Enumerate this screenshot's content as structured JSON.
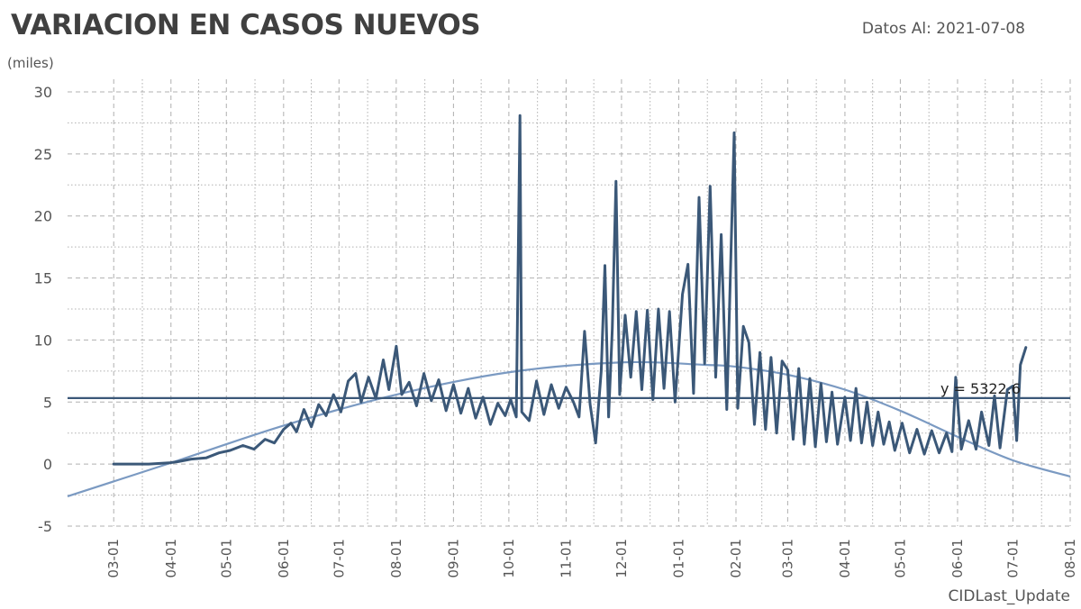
{
  "header": {
    "title": "VARIACION EN CASOS NUEVOS",
    "as_of_label": "Datos Al: 2021-07-08"
  },
  "chart_data": {
    "type": "line",
    "title": "VARIACION EN CASOS NUEVOS",
    "ylabel": "(miles)",
    "xlabel": "CIDLast_Update",
    "ylim": [
      -5,
      30
    ],
    "xlim": [
      "2020-02-05",
      "2021-08-01"
    ],
    "y_ticks": [
      30,
      25,
      20,
      15,
      10,
      5,
      0,
      -5
    ],
    "x_ticks": [
      "2020-03-01",
      "2020-04-01",
      "2020-05-01",
      "2020-06-01",
      "2020-07-01",
      "2020-08-01",
      "2020-09-01",
      "2020-10-01",
      "2020-11-01",
      "2020-12-01",
      "2021-01-01",
      "2021-02-01",
      "2021-03-01",
      "2021-04-01",
      "2021-05-01",
      "2021-06-01",
      "2021-07-01",
      "2021-08-01"
    ],
    "x_tick_labels": [
      "03-01",
      "04-01",
      "05-01",
      "06-01",
      "07-01",
      "08-01",
      "09-01",
      "10-01",
      "11-01",
      "12-01",
      "01-01",
      "02-01",
      "03-01",
      "04-01",
      "05-01",
      "06-01",
      "07-01",
      "08-01"
    ],
    "grid": true,
    "colors": {
      "series": "#3b5878",
      "trend": "#7b9ac2",
      "reference": "#3b5878",
      "grid": "#b0b0b0"
    },
    "reference_line": {
      "value": 5.3226,
      "label": "y = 5322.6"
    },
    "trend": {
      "kind": "polynomial",
      "points": [
        [
          "2020-02-05",
          -2.6
        ],
        [
          "2020-04-01",
          0.1
        ],
        [
          "2020-06-01",
          3.1
        ],
        [
          "2020-08-01",
          5.6
        ],
        [
          "2020-10-01",
          7.4
        ],
        [
          "2020-12-01",
          8.2
        ],
        [
          "2021-01-15",
          8.0
        ],
        [
          "2021-02-01",
          7.85
        ],
        [
          "2021-03-01",
          7.2
        ],
        [
          "2021-04-01",
          6.0
        ],
        [
          "2021-05-01",
          4.3
        ],
        [
          "2021-06-01",
          2.2
        ],
        [
          "2021-07-01",
          0.3
        ],
        [
          "2021-08-01",
          -1.0
        ]
      ]
    },
    "series": [
      {
        "values": [
          [
            "2020-03-01",
            0
          ],
          [
            "2020-03-10",
            0
          ],
          [
            "2020-03-20",
            0
          ],
          [
            "2020-03-31",
            0.1
          ],
          [
            "2020-04-05",
            0.2
          ],
          [
            "2020-04-12",
            0.4
          ],
          [
            "2020-04-20",
            0.5
          ],
          [
            "2020-04-27",
            0.9
          ],
          [
            "2020-05-03",
            1.1
          ],
          [
            "2020-05-10",
            1.5
          ],
          [
            "2020-05-16",
            1.2
          ],
          [
            "2020-05-22",
            2.0
          ],
          [
            "2020-05-27",
            1.7
          ],
          [
            "2020-06-01",
            2.8
          ],
          [
            "2020-06-05",
            3.3
          ],
          [
            "2020-06-08",
            2.6
          ],
          [
            "2020-06-12",
            4.4
          ],
          [
            "2020-06-16",
            3.0
          ],
          [
            "2020-06-20",
            4.8
          ],
          [
            "2020-06-24",
            3.9
          ],
          [
            "2020-06-28",
            5.6
          ],
          [
            "2020-07-02",
            4.2
          ],
          [
            "2020-07-06",
            6.7
          ],
          [
            "2020-07-10",
            7.3
          ],
          [
            "2020-07-13",
            5.0
          ],
          [
            "2020-07-17",
            7.0
          ],
          [
            "2020-07-21",
            5.3
          ],
          [
            "2020-07-25",
            8.4
          ],
          [
            "2020-07-28",
            6.0
          ],
          [
            "2020-08-01",
            9.5
          ],
          [
            "2020-08-04",
            5.6
          ],
          [
            "2020-08-08",
            6.6
          ],
          [
            "2020-08-12",
            4.7
          ],
          [
            "2020-08-16",
            7.3
          ],
          [
            "2020-08-20",
            5.1
          ],
          [
            "2020-08-24",
            6.8
          ],
          [
            "2020-08-28",
            4.3
          ],
          [
            "2020-09-01",
            6.4
          ],
          [
            "2020-09-05",
            4.1
          ],
          [
            "2020-09-09",
            6.1
          ],
          [
            "2020-09-13",
            3.7
          ],
          [
            "2020-09-17",
            5.4
          ],
          [
            "2020-09-21",
            3.2
          ],
          [
            "2020-09-25",
            4.9
          ],
          [
            "2020-09-29",
            3.9
          ],
          [
            "2020-10-02",
            5.2
          ],
          [
            "2020-10-05",
            3.8
          ],
          [
            "2020-10-07",
            28.1
          ],
          [
            "2020-10-08",
            4.2
          ],
          [
            "2020-10-12",
            3.5
          ],
          [
            "2020-10-16",
            6.7
          ],
          [
            "2020-10-20",
            4.0
          ],
          [
            "2020-10-24",
            6.4
          ],
          [
            "2020-10-28",
            4.5
          ],
          [
            "2020-11-01",
            6.2
          ],
          [
            "2020-11-05",
            5.0
          ],
          [
            "2020-11-08",
            3.8
          ],
          [
            "2020-11-11",
            10.7
          ],
          [
            "2020-11-14",
            4.8
          ],
          [
            "2020-11-17",
            1.7
          ],
          [
            "2020-11-20",
            7.5
          ],
          [
            "2020-11-22",
            16.0
          ],
          [
            "2020-11-24",
            3.8
          ],
          [
            "2020-11-26",
            10.9
          ],
          [
            "2020-11-28",
            22.8
          ],
          [
            "2020-11-30",
            5.6
          ],
          [
            "2020-12-03",
            12.0
          ],
          [
            "2020-12-06",
            7.0
          ],
          [
            "2020-12-09",
            12.3
          ],
          [
            "2020-12-12",
            6.0
          ],
          [
            "2020-12-15",
            12.4
          ],
          [
            "2020-12-18",
            5.2
          ],
          [
            "2020-12-21",
            12.5
          ],
          [
            "2020-12-24",
            6.1
          ],
          [
            "2020-12-27",
            12.3
          ],
          [
            "2020-12-30",
            5.0
          ],
          [
            "2021-01-03",
            13.7
          ],
          [
            "2021-01-06",
            16.1
          ],
          [
            "2021-01-09",
            5.7
          ],
          [
            "2021-01-12",
            21.5
          ],
          [
            "2021-01-15",
            8.1
          ],
          [
            "2021-01-18",
            22.4
          ],
          [
            "2021-01-21",
            7.0
          ],
          [
            "2021-01-24",
            18.5
          ],
          [
            "2021-01-27",
            4.4
          ],
          [
            "2021-01-31",
            26.7
          ],
          [
            "2021-02-02",
            4.5
          ],
          [
            "2021-02-05",
            11.1
          ],
          [
            "2021-02-08",
            9.8
          ],
          [
            "2021-02-11",
            3.2
          ],
          [
            "2021-02-14",
            9.0
          ],
          [
            "2021-02-17",
            2.8
          ],
          [
            "2021-02-20",
            8.6
          ],
          [
            "2021-02-23",
            2.5
          ],
          [
            "2021-02-26",
            8.3
          ],
          [
            "2021-03-01",
            7.6
          ],
          [
            "2021-03-04",
            2.0
          ],
          [
            "2021-03-07",
            7.7
          ],
          [
            "2021-03-10",
            1.6
          ],
          [
            "2021-03-13",
            6.9
          ],
          [
            "2021-03-16",
            1.4
          ],
          [
            "2021-03-19",
            6.5
          ],
          [
            "2021-03-22",
            1.8
          ],
          [
            "2021-03-25",
            5.8
          ],
          [
            "2021-03-28",
            1.6
          ],
          [
            "2021-04-01",
            5.4
          ],
          [
            "2021-04-04",
            1.9
          ],
          [
            "2021-04-07",
            6.1
          ],
          [
            "2021-04-10",
            1.7
          ],
          [
            "2021-04-13",
            5.0
          ],
          [
            "2021-04-16",
            1.5
          ],
          [
            "2021-04-19",
            4.2
          ],
          [
            "2021-04-22",
            1.6
          ],
          [
            "2021-04-25",
            3.4
          ],
          [
            "2021-04-28",
            1.1
          ],
          [
            "2021-05-02",
            3.3
          ],
          [
            "2021-05-06",
            0.9
          ],
          [
            "2021-05-10",
            2.8
          ],
          [
            "2021-05-14",
            0.8
          ],
          [
            "2021-05-18",
            2.7
          ],
          [
            "2021-05-22",
            0.9
          ],
          [
            "2021-05-26",
            2.5
          ],
          [
            "2021-05-29",
            1.0
          ],
          [
            "2021-05-31",
            7.0
          ],
          [
            "2021-06-03",
            1.2
          ],
          [
            "2021-06-07",
            3.5
          ],
          [
            "2021-06-11",
            1.2
          ],
          [
            "2021-06-14",
            4.2
          ],
          [
            "2021-06-18",
            1.5
          ],
          [
            "2021-06-21",
            5.5
          ],
          [
            "2021-06-24",
            1.3
          ],
          [
            "2021-06-28",
            6.0
          ],
          [
            "2021-07-01",
            6.3
          ],
          [
            "2021-07-03",
            1.9
          ],
          [
            "2021-07-05",
            8.0
          ],
          [
            "2021-07-08",
            9.4
          ]
        ]
      }
    ]
  }
}
